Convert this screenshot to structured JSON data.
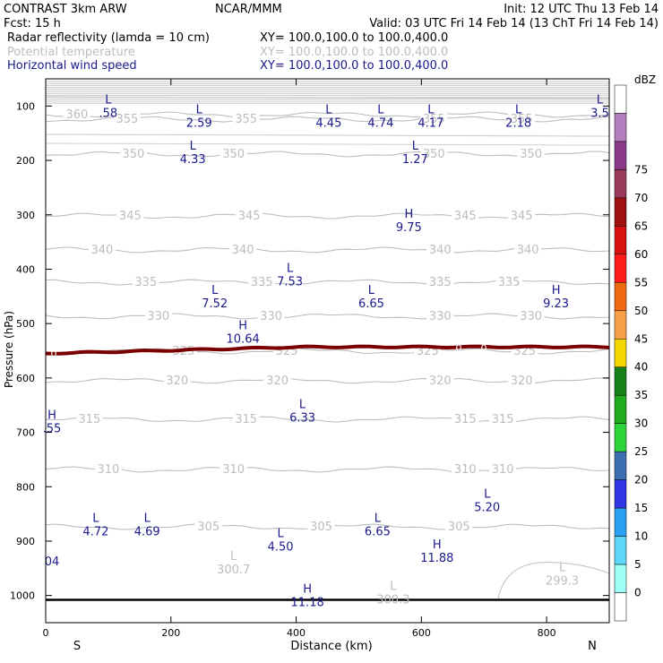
{
  "header": {
    "model": "CONTRAST  3km ARW",
    "center": "NCAR/MMM",
    "init": "Init: 12 UTC Thu 13 Feb 14",
    "fcst": "Fcst:   15 h",
    "valid": "Valid: 03 UTC Fri 14 Feb 14 (13 ChT Fri 14 Feb 14)",
    "fields": [
      {
        "name": "Radar reflectivity (lamda = 10 cm)",
        "xy": "XY= 100.0,100.0 to 100.0,400.0",
        "color": "#000000"
      },
      {
        "name": "Potential temperature",
        "xy": "XY= 100.0,100.0 to 100.0,400.0",
        "color": "#bdbdbd"
      },
      {
        "name": "Horizontal wind speed",
        "xy": "XY= 100.0,100.0 to 100.0,400.0",
        "color": "#1a1a8c"
      }
    ]
  },
  "chart_data": {
    "type": "contour",
    "xlabel": "Distance (km)",
    "ylabel": "Pressure (hPa)",
    "xlim": [
      0,
      900
    ],
    "ylim": [
      1050,
      50
    ],
    "x_ticks": [
      0,
      200,
      400,
      600,
      800
    ],
    "y_ticks": [
      100,
      200,
      300,
      400,
      500,
      600,
      700,
      800,
      900,
      1000
    ],
    "x_end_labels": {
      "left": "S",
      "right": "N"
    },
    "theta_contours": [
      {
        "value": 360,
        "labels": [
          {
            "x": 50,
            "text": "360"
          }
        ]
      },
      {
        "value": 355,
        "labels": [
          {
            "x": 130,
            "text": "355"
          },
          {
            "x": 320,
            "text": "355"
          },
          {
            "x": 620,
            "text": "355"
          },
          {
            "x": 760,
            "text": "355"
          }
        ]
      },
      {
        "value": 350,
        "labels": [
          {
            "x": 140,
            "text": "350"
          },
          {
            "x": 300,
            "text": "350"
          },
          {
            "x": 620,
            "text": "350"
          },
          {
            "x": 775,
            "text": "350"
          }
        ]
      },
      {
        "value": 345,
        "labels": [
          {
            "x": 135,
            "text": "345"
          },
          {
            "x": 325,
            "text": "345"
          },
          {
            "x": 670,
            "text": "345"
          },
          {
            "x": 760,
            "text": "345"
          }
        ]
      },
      {
        "value": 340,
        "labels": [
          {
            "x": 90,
            "text": "340"
          },
          {
            "x": 315,
            "text": "340"
          },
          {
            "x": 630,
            "text": "340"
          },
          {
            "x": 770,
            "text": "340"
          }
        ]
      },
      {
        "value": 335,
        "labels": [
          {
            "x": 160,
            "text": "335"
          },
          {
            "x": 345,
            "text": "335"
          },
          {
            "x": 630,
            "text": "335"
          },
          {
            "x": 740,
            "text": "335"
          }
        ]
      },
      {
        "value": 330,
        "labels": [
          {
            "x": 180,
            "text": "330"
          },
          {
            "x": 360,
            "text": "330"
          },
          {
            "x": 630,
            "text": "330"
          },
          {
            "x": 775,
            "text": "330"
          }
        ]
      },
      {
        "value": 325,
        "labels": [
          {
            "x": 220,
            "text": "325"
          },
          {
            "x": 385,
            "text": "325"
          },
          {
            "x": 610,
            "text": "325"
          },
          {
            "x": 765,
            "text": "325"
          }
        ]
      },
      {
        "value": 320,
        "labels": [
          {
            "x": 210,
            "text": "320"
          },
          {
            "x": 370,
            "text": "320"
          },
          {
            "x": 630,
            "text": "320"
          },
          {
            "x": 760,
            "text": "320"
          }
        ]
      },
      {
        "value": 315,
        "labels": [
          {
            "x": 70,
            "text": "315"
          },
          {
            "x": 320,
            "text": "315"
          },
          {
            "x": 670,
            "text": "315"
          },
          {
            "x": 730,
            "text": "315"
          }
        ]
      },
      {
        "value": 310,
        "labels": [
          {
            "x": 100,
            "text": "310"
          },
          {
            "x": 300,
            "text": "310"
          },
          {
            "x": 670,
            "text": "310"
          },
          {
            "x": 730,
            "text": "310"
          }
        ]
      },
      {
        "value": 305,
        "labels": [
          {
            "x": 260,
            "text": "305"
          },
          {
            "x": 440,
            "text": "305"
          },
          {
            "x": 660,
            "text": "305"
          }
        ]
      }
    ],
    "wind_extrema": [
      {
        "type": "L",
        "value": "2.59",
        "x": 245,
        "p": 118
      },
      {
        "type": "L",
        "value": "4.45",
        "x": 452,
        "p": 118
      },
      {
        "type": "L",
        "value": "4.74",
        "x": 535,
        "p": 118
      },
      {
        "type": "L",
        "value": "4.17",
        "x": 615,
        "p": 118
      },
      {
        "type": "L",
        "value": "2.18",
        "x": 755,
        "p": 118
      },
      {
        "type": "L",
        "value": "4.33",
        "x": 235,
        "p": 185
      },
      {
        "type": "L",
        "value": "1.27",
        "x": 590,
        "p": 185
      },
      {
        "type": "H",
        "value": "9.75",
        "x": 580,
        "p": 310
      },
      {
        "type": "L",
        "value": "7.53",
        "x": 390,
        "p": 410
      },
      {
        "type": "L",
        "value": "7.52",
        "x": 270,
        "p": 450
      },
      {
        "type": "L",
        "value": "6.65",
        "x": 520,
        "p": 450
      },
      {
        "type": "H",
        "value": "9.23",
        "x": 815,
        "p": 450
      },
      {
        "type": "H",
        "value": "10.64",
        "x": 315,
        "p": 515
      },
      {
        "type": "L",
        "value": "6.33",
        "x": 410,
        "p": 660
      },
      {
        "type": "L",
        "value": "5.20",
        "x": 705,
        "p": 825
      },
      {
        "type": "L",
        "value": "4.72",
        "x": 80,
        "p": 870
      },
      {
        "type": "L",
        "value": "4.69",
        "x": 162,
        "p": 870
      },
      {
        "type": "L",
        "value": "6.65",
        "x": 530,
        "p": 870
      },
      {
        "type": "L",
        "value": "4.50",
        "x": 375,
        "p": 898
      },
      {
        "type": "H",
        "value": "11.88",
        "x": 625,
        "p": 918
      },
      {
        "type": "H",
        "value": "11.18",
        "x": 418,
        "p": 1000
      }
    ],
    "edge_wind_labels": [
      {
        "type": "L",
        "value": ".58",
        "x": 100,
        "p": 100
      },
      {
        "type": "L",
        "value": "3.5",
        "x": 885,
        "p": 100
      },
      {
        "type": "H",
        "value": ".55",
        "x": 10,
        "p": 680
      },
      {
        "type": "",
        "value": "04",
        "x": 10,
        "p": 925
      }
    ],
    "theta_extrema": [
      {
        "type": "L",
        "value": "300.7",
        "x": 300,
        "p": 940
      },
      {
        "type": "L",
        "value": "300.3",
        "x": 555,
        "p": 995
      },
      {
        "type": "L",
        "value": "299.3",
        "x": 825,
        "p": 960
      }
    ],
    "reflectivity_contour": {
      "value": 0,
      "p_left": 555,
      "p_right": 543,
      "color": "#7a0000"
    },
    "terrain_pressure": 1008
  },
  "colorbar": {
    "title": "dBZ",
    "levels": [
      "0",
      "5",
      "10",
      "15",
      "20",
      "25",
      "30",
      "35",
      "40",
      "45",
      "50",
      "55",
      "60",
      "65",
      "70",
      "75"
    ],
    "colors": [
      "#ffffff",
      "#9ffff5",
      "#5fd7f7",
      "#2b9ff1",
      "#3333e6",
      "#3b6fb2",
      "#2fd33a",
      "#1faa1f",
      "#17801a",
      "#f5d800",
      "#f7a04a",
      "#f06a14",
      "#ff1a1a",
      "#d81010",
      "#a01010",
      "#9a3a5a",
      "#8a3a8a",
      "#b57fbf",
      "#ffffff"
    ]
  }
}
